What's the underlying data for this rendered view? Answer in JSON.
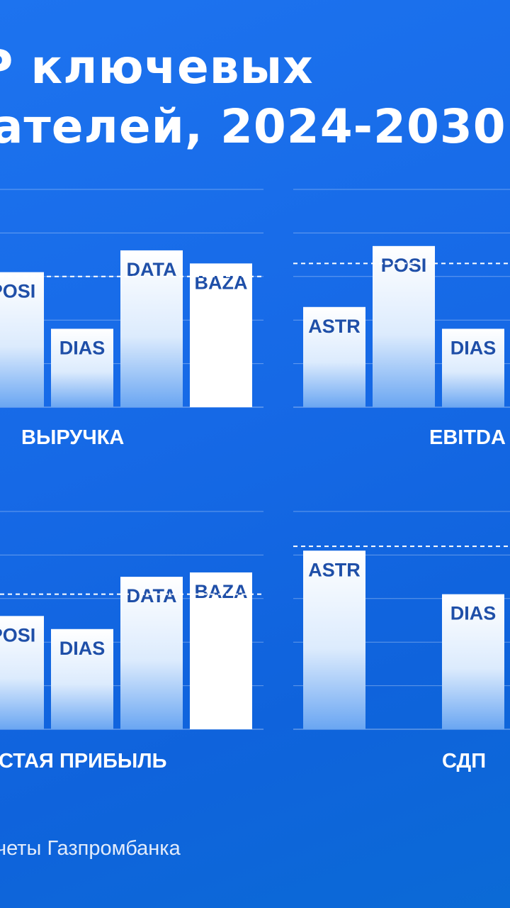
{
  "title": {
    "line1": "Р ключевых",
    "line2": "ателей, 2024-2030"
  },
  "source": "четы Газпромбанка",
  "colors": {
    "background": "#1669e6",
    "bar_top": "#ffffff",
    "bar_bottom": "#6aa6f2",
    "highlight_bar": "#ffffff",
    "bar_label": "#1f4fa8"
  },
  "chart_data": [
    {
      "type": "bar",
      "title": "ВЫРУЧКА",
      "categories": [
        "POSI",
        "DIAS",
        "DATA",
        "BAZA"
      ],
      "values": [
        3.1,
        1.8,
        3.6,
        3.3
      ],
      "reference_line": 3.0,
      "highlight": "BAZA",
      "ylim": [
        0,
        5
      ],
      "grid": true
    },
    {
      "type": "bar",
      "title": "EBITDA",
      "categories": [
        "ASTR",
        "POSI",
        "DIAS"
      ],
      "values": [
        2.3,
        3.7,
        1.8
      ],
      "reference_line": 3.3,
      "ylim": [
        0,
        5
      ],
      "grid": true
    },
    {
      "type": "bar",
      "title": "СТАЯ ПРИБЫЛЬ",
      "categories": [
        "POSI",
        "DIAS",
        "DATA",
        "BAZA"
      ],
      "values": [
        2.6,
        2.3,
        3.5,
        3.6
      ],
      "reference_line": 3.1,
      "highlight": "BAZA",
      "ylim": [
        0,
        5
      ],
      "grid": true
    },
    {
      "type": "bar",
      "title": "СДП",
      "categories": [
        "ASTR",
        "DIAS"
      ],
      "values": [
        4.1,
        3.1
      ],
      "reference_line": 4.2,
      "ylim": [
        0,
        5
      ],
      "grid": true
    }
  ]
}
